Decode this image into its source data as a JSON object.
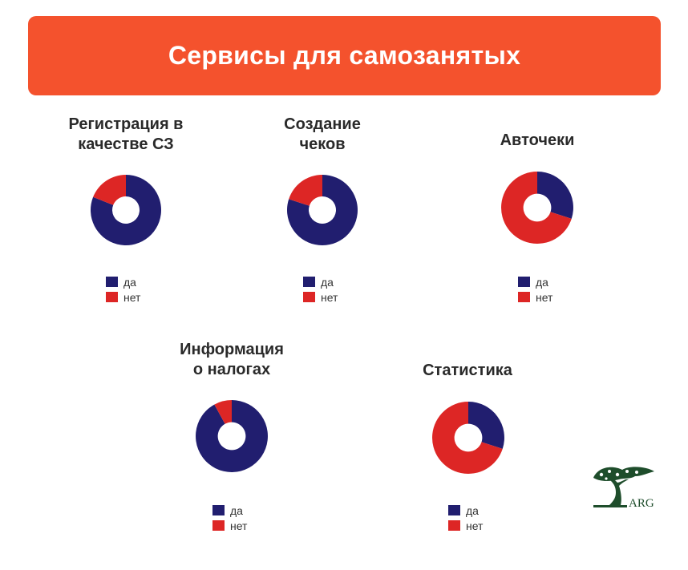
{
  "header": {
    "title": "Сервисы для самозанятых"
  },
  "colors": {
    "accent": "#f4522d",
    "yes": "#211e6f",
    "no": "#dd2625"
  },
  "legend": {
    "yes": "да",
    "no": "нет"
  },
  "logo": {
    "text": "ARG"
  },
  "chart_data": [
    {
      "type": "pie",
      "title_lines": [
        "Регистрация в",
        "качестве СЗ"
      ],
      "categories": [
        "да",
        "нет"
      ],
      "values": [
        81,
        19
      ]
    },
    {
      "type": "pie",
      "title_lines": [
        "Создание",
        "чеков"
      ],
      "categories": [
        "да",
        "нет"
      ],
      "values": [
        80,
        20
      ]
    },
    {
      "type": "pie",
      "title_lines": [
        "Авточеки"
      ],
      "categories": [
        "да",
        "нет"
      ],
      "values": [
        30,
        70
      ]
    },
    {
      "type": "pie",
      "title_lines": [
        "Информация",
        "о налогах"
      ],
      "categories": [
        "да",
        "нет"
      ],
      "values": [
        92,
        8
      ]
    },
    {
      "type": "pie",
      "title_lines": [
        "Статистика"
      ],
      "categories": [
        "да",
        "нет"
      ],
      "values": [
        30,
        70
      ]
    }
  ]
}
